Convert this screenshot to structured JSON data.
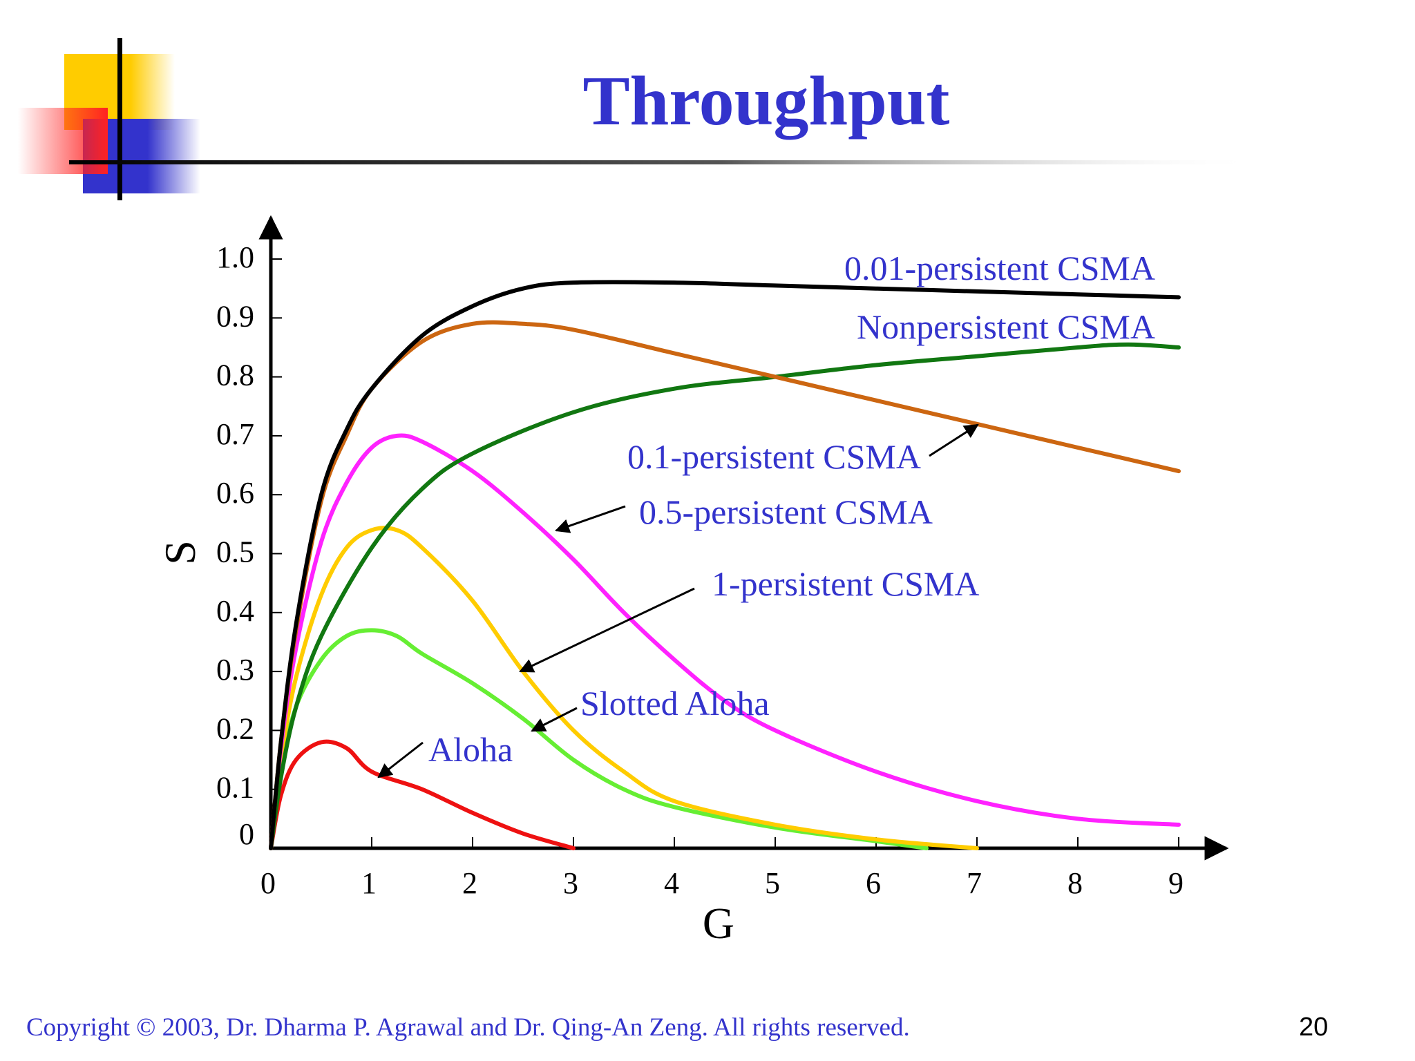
{
  "slide": {
    "title": "Throughput",
    "footer": "Copyright © 2003, Dr. Dharma P. Agrawal and Dr. Qing-An Zeng. All rights reserved.",
    "page_number": "20"
  },
  "chart_data": {
    "type": "line",
    "xlabel": "G",
    "ylabel": "S",
    "xlim": [
      0,
      9
    ],
    "ylim": [
      0,
      1.0
    ],
    "x_ticks": [
      "0",
      "1",
      "2",
      "3",
      "4",
      "5",
      "6",
      "7",
      "8",
      "9"
    ],
    "y_ticks": [
      "0",
      "0.1",
      "0.2",
      "0.3",
      "0.4",
      "0.5",
      "0.6",
      "0.7",
      "0.8",
      "0.9",
      "1.0"
    ],
    "grid": false,
    "legend": "inline labels",
    "series": [
      {
        "name": "0.01-persistent CSMA",
        "color": "#000000",
        "points": [
          [
            0,
            0
          ],
          [
            0.1,
            0.18
          ],
          [
            0.25,
            0.38
          ],
          [
            0.5,
            0.6
          ],
          [
            0.75,
            0.71
          ],
          [
            1,
            0.78
          ],
          [
            1.5,
            0.87
          ],
          [
            2,
            0.92
          ],
          [
            2.5,
            0.95
          ],
          [
            3,
            0.96
          ],
          [
            4,
            0.96
          ],
          [
            5,
            0.955
          ],
          [
            6,
            0.95
          ],
          [
            7,
            0.945
          ],
          [
            8,
            0.94
          ],
          [
            9,
            0.935
          ]
        ]
      },
      {
        "name": "Nonpersistent CSMA",
        "color": "#cc6611",
        "points": [
          [
            0,
            0
          ],
          [
            0.1,
            0.18
          ],
          [
            0.25,
            0.37
          ],
          [
            0.5,
            0.59
          ],
          [
            0.75,
            0.7
          ],
          [
            1,
            0.78
          ],
          [
            1.5,
            0.86
          ],
          [
            2,
            0.89
          ],
          [
            2.5,
            0.89
          ],
          [
            3,
            0.88
          ],
          [
            4,
            0.84
          ],
          [
            5,
            0.8
          ],
          [
            6,
            0.76
          ],
          [
            7,
            0.72
          ],
          [
            8,
            0.68
          ],
          [
            9,
            0.64
          ]
        ]
      },
      {
        "name": "0.1-persistent CSMA",
        "color": "#117711",
        "points": [
          [
            0,
            0
          ],
          [
            0.1,
            0.12
          ],
          [
            0.25,
            0.24
          ],
          [
            0.5,
            0.36
          ],
          [
            1,
            0.51
          ],
          [
            1.5,
            0.61
          ],
          [
            2,
            0.67
          ],
          [
            3,
            0.74
          ],
          [
            4,
            0.78
          ],
          [
            5,
            0.8
          ],
          [
            6,
            0.82
          ],
          [
            7,
            0.835
          ],
          [
            8,
            0.85
          ],
          [
            8.5,
            0.855
          ],
          [
            9,
            0.85
          ]
        ]
      },
      {
        "name": "0.5-persistent CSMA",
        "color": "#ff22ff",
        "points": [
          [
            0,
            0
          ],
          [
            0.1,
            0.17
          ],
          [
            0.25,
            0.34
          ],
          [
            0.5,
            0.52
          ],
          [
            0.75,
            0.62
          ],
          [
            1,
            0.68
          ],
          [
            1.25,
            0.7
          ],
          [
            1.5,
            0.69
          ],
          [
            2,
            0.64
          ],
          [
            2.5,
            0.57
          ],
          [
            3,
            0.49
          ],
          [
            3.5,
            0.4
          ],
          [
            4,
            0.32
          ],
          [
            4.5,
            0.25
          ],
          [
            5,
            0.2
          ],
          [
            6,
            0.13
          ],
          [
            7,
            0.08
          ],
          [
            8,
            0.05
          ],
          [
            9,
            0.04
          ]
        ]
      },
      {
        "name": "1-persistent CSMA",
        "color": "#ffcc00",
        "points": [
          [
            0,
            0
          ],
          [
            0.1,
            0.15
          ],
          [
            0.25,
            0.29
          ],
          [
            0.5,
            0.43
          ],
          [
            0.75,
            0.51
          ],
          [
            1,
            0.54
          ],
          [
            1.25,
            0.54
          ],
          [
            1.5,
            0.51
          ],
          [
            2,
            0.42
          ],
          [
            2.5,
            0.3
          ],
          [
            3,
            0.2
          ],
          [
            3.5,
            0.13
          ],
          [
            4,
            0.08
          ],
          [
            5,
            0.04
          ],
          [
            6,
            0.015
          ],
          [
            7,
            0.0
          ]
        ]
      },
      {
        "name": "Slotted Aloha",
        "color": "#66ee33",
        "points": [
          [
            0,
            0
          ],
          [
            0.1,
            0.13
          ],
          [
            0.25,
            0.24
          ],
          [
            0.5,
            0.32
          ],
          [
            0.75,
            0.36
          ],
          [
            1,
            0.37
          ],
          [
            1.25,
            0.36
          ],
          [
            1.5,
            0.33
          ],
          [
            2,
            0.28
          ],
          [
            2.5,
            0.22
          ],
          [
            3,
            0.15
          ],
          [
            3.5,
            0.1
          ],
          [
            4,
            0.07
          ],
          [
            5,
            0.035
          ],
          [
            6,
            0.012
          ],
          [
            6.5,
            0.0
          ]
        ]
      },
      {
        "name": "Aloha",
        "color": "#ee1111",
        "points": [
          [
            0,
            0
          ],
          [
            0.1,
            0.09
          ],
          [
            0.25,
            0.15
          ],
          [
            0.5,
            0.18
          ],
          [
            0.75,
            0.17
          ],
          [
            1,
            0.13
          ],
          [
            1.5,
            0.1
          ],
          [
            2,
            0.06
          ],
          [
            2.5,
            0.025
          ],
          [
            3,
            0.0
          ]
        ]
      }
    ]
  }
}
